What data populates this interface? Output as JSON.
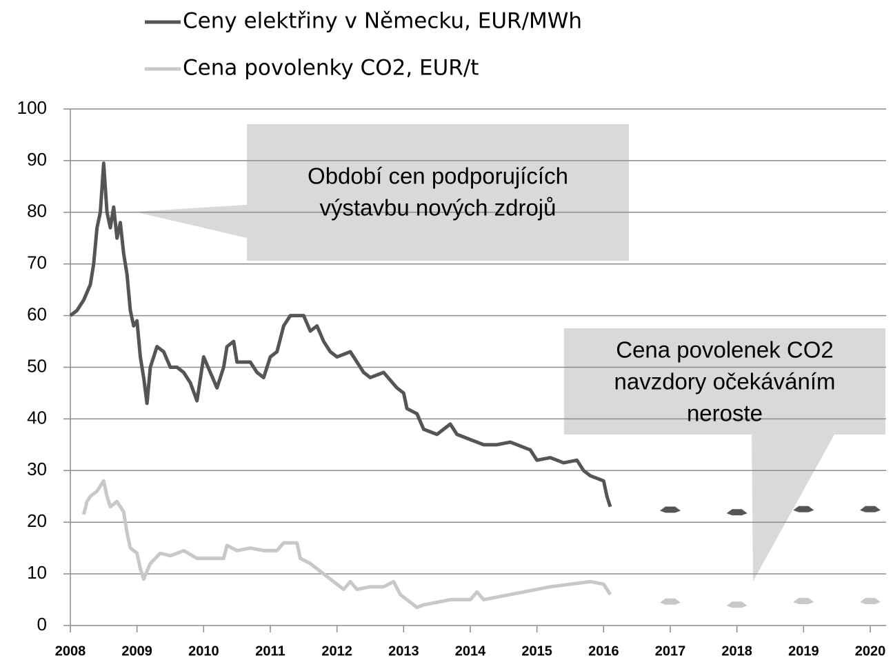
{
  "chart_data": {
    "type": "line",
    "legend": "top",
    "grid": true,
    "xlim": [
      2008,
      2020
    ],
    "xticks": [
      2008,
      2009,
      2010,
      2011,
      2012,
      2013,
      2014,
      2015,
      2016,
      2017,
      2018,
      2019,
      2020
    ],
    "ylim": [
      0,
      100
    ],
    "yticks": [
      0,
      10,
      20,
      30,
      40,
      50,
      60,
      70,
      80,
      90,
      100
    ],
    "annotations": [
      {
        "lines": [
          "Období cen podporujících",
          "výstavbu nových zdrojů"
        ]
      },
      {
        "lines": [
          "Cena povolenek CO2",
          "navzdory očekáváním",
          "neroste"
        ]
      }
    ],
    "series": [
      {
        "name": "Ceny elektřiny v Německu, EUR/MWh",
        "color": "#555555",
        "x": [
          2008.0,
          2008.1,
          2008.2,
          2008.3,
          2008.35,
          2008.4,
          2008.45,
          2008.5,
          2008.55,
          2008.6,
          2008.65,
          2008.7,
          2008.75,
          2008.8,
          2008.85,
          2008.9,
          2008.95,
          2009.0,
          2009.05,
          2009.1,
          2009.15,
          2009.2,
          2009.3,
          2009.4,
          2009.5,
          2009.6,
          2009.7,
          2009.8,
          2009.9,
          2010.0,
          2010.1,
          2010.2,
          2010.3,
          2010.35,
          2010.45,
          2010.5,
          2010.7,
          2010.8,
          2010.9,
          2011.0,
          2011.1,
          2011.2,
          2011.3,
          2011.5,
          2011.6,
          2011.7,
          2011.8,
          2011.9,
          2012.0,
          2012.2,
          2012.3,
          2012.4,
          2012.5,
          2012.7,
          2012.9,
          2013.0,
          2013.05,
          2013.2,
          2013.3,
          2013.5,
          2013.7,
          2013.8,
          2014.0,
          2014.2,
          2014.4,
          2014.6,
          2014.8,
          2014.9,
          2015.0,
          2015.2,
          2015.4,
          2015.6,
          2015.7,
          2015.8,
          2015.9,
          2016.0,
          2016.05,
          2016.1
        ],
        "values": [
          60,
          61,
          63,
          66,
          70,
          77,
          80,
          89.5,
          80,
          77,
          81,
          75,
          78,
          72,
          68,
          61,
          58,
          59,
          52,
          48,
          43,
          50,
          54,
          53,
          50,
          50,
          49,
          47,
          43.5,
          52,
          49,
          46,
          50,
          54,
          55,
          51,
          51,
          49,
          48,
          52,
          53,
          58,
          60,
          60,
          57,
          58,
          55,
          53,
          52,
          53,
          51,
          49,
          48,
          49,
          46,
          45,
          42,
          41,
          38,
          37,
          39,
          37,
          36,
          35,
          35,
          35.5,
          34.5,
          34,
          32,
          32.5,
          31.5,
          32,
          30,
          29,
          28.5,
          28,
          25,
          23
        ],
        "forward_x": [
          2017,
          2018,
          2019,
          2020
        ],
        "forward_values": [
          22.5,
          22,
          22.6,
          22.6
        ]
      },
      {
        "name": "Cena povolenky CO2, EUR/t",
        "color": "#c8c8c8",
        "x": [
          2008.2,
          2008.25,
          2008.3,
          2008.4,
          2008.5,
          2008.55,
          2008.6,
          2008.7,
          2008.8,
          2008.85,
          2008.9,
          2009.0,
          2009.05,
          2009.1,
          2009.2,
          2009.35,
          2009.5,
          2009.7,
          2009.9,
          2010.1,
          2010.3,
          2010.35,
          2010.5,
          2010.7,
          2010.9,
          2011.1,
          2011.2,
          2011.4,
          2011.45,
          2011.6,
          2011.8,
          2012.0,
          2012.1,
          2012.2,
          2012.3,
          2012.5,
          2012.7,
          2012.85,
          2012.95,
          2013.1,
          2013.2,
          2013.3,
          2013.5,
          2013.7,
          2014.0,
          2014.1,
          2014.2,
          2014.4,
          2014.6,
          2014.8,
          2015.0,
          2015.2,
          2015.5,
          2015.8,
          2016.0,
          2016.1
        ],
        "values": [
          21.5,
          24,
          25,
          26,
          28,
          25,
          23,
          24,
          22,
          18,
          15,
          14,
          11,
          9,
          12,
          14,
          13.5,
          14.5,
          13,
          13,
          13,
          15.5,
          14.5,
          15,
          14.5,
          14.5,
          16,
          16,
          13,
          12,
          10,
          8,
          7,
          8.5,
          7,
          7.5,
          7.5,
          8.5,
          6,
          4.5,
          3.5,
          4,
          4.5,
          5,
          5,
          6.5,
          5,
          5.5,
          6,
          6.5,
          7,
          7.5,
          8,
          8.5,
          8,
          6
        ],
        "forward_x": [
          2017,
          2018,
          2019,
          2020
        ],
        "forward_values": [
          4.7,
          4.1,
          4.8,
          4.8
        ]
      }
    ]
  }
}
